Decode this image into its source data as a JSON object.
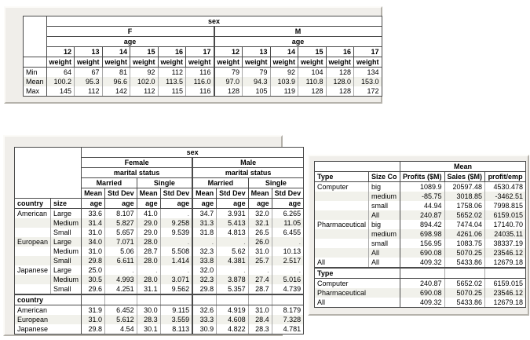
{
  "weight_table": {
    "sex_label": "sex",
    "measure_label": "weight",
    "groups": [
      {
        "label": "F",
        "age_label": "age",
        "ages": [
          "12",
          "13",
          "14",
          "15",
          "16",
          "17"
        ]
      },
      {
        "label": "M",
        "age_label": "age",
        "ages": [
          "12",
          "13",
          "14",
          "15",
          "16",
          "17"
        ]
      }
    ],
    "rows": [
      {
        "label": "Min",
        "values": [
          "64",
          "67",
          "81",
          "92",
          "112",
          "116",
          "79",
          "79",
          "92",
          "104",
          "128",
          "134"
        ]
      },
      {
        "label": "Mean",
        "values": [
          "100.2",
          "95.3",
          "96.6",
          "102.0",
          "113.5",
          "116.0",
          "97.0",
          "94.3",
          "103.9",
          "110.8",
          "128.0",
          "153.0"
        ]
      },
      {
        "label": "Max",
        "values": [
          "145",
          "112",
          "142",
          "112",
          "115",
          "116",
          "128",
          "105",
          "119",
          "128",
          "128",
          "172"
        ]
      }
    ]
  },
  "age_table": {
    "sex_label": "sex",
    "mean_label": "Mean",
    "stddev_label": "Std Dev",
    "age_label": "age",
    "country_label": "country",
    "size_label": "size",
    "groups": [
      {
        "label": "Female",
        "marital_label": "marital status",
        "statuses": [
          {
            "label": "Married"
          },
          {
            "label": "Single"
          }
        ]
      },
      {
        "label": "Male",
        "marital_label": "marital status",
        "statuses": [
          {
            "label": "Married"
          },
          {
            "label": "Single"
          }
        ]
      }
    ],
    "rows": [
      {
        "country": "American",
        "size": "Large",
        "values": [
          "33.6",
          "8.107",
          "41.0",
          ".",
          "34.7",
          "3.931",
          "32.0",
          "6.265"
        ]
      },
      {
        "country": "",
        "size": "Medium",
        "values": [
          "31.4",
          "5.827",
          "29.0",
          "9.258",
          "31.3",
          "5.413",
          "32.1",
          "11.05"
        ]
      },
      {
        "country": "",
        "size": "Small",
        "values": [
          "31.0",
          "5.657",
          "29.0",
          "9.539",
          "31.8",
          "4.813",
          "26.5",
          "6.455"
        ]
      },
      {
        "country": "European",
        "size": "Large",
        "values": [
          "34.0",
          "7.071",
          "28.0",
          ".",
          ".",
          ".",
          "26.0",
          "."
        ]
      },
      {
        "country": "",
        "size": "Medium",
        "values": [
          "31.0",
          "5.06",
          "28.7",
          "5.508",
          "32.3",
          "5.62",
          "31.0",
          "10.13"
        ]
      },
      {
        "country": "",
        "size": "Small",
        "values": [
          "29.8",
          "6.611",
          "28.0",
          "1.414",
          "33.8",
          "4.381",
          "25.7",
          "2.517"
        ]
      },
      {
        "country": "Japanese",
        "size": "Large",
        "values": [
          "25.0",
          ".",
          ".",
          ".",
          "32.0",
          ".",
          ".",
          "."
        ]
      },
      {
        "country": "",
        "size": "Medium",
        "values": [
          "30.5",
          "4.993",
          "28.0",
          "3.071",
          "32.3",
          "3.878",
          "27.4",
          "5.016"
        ]
      },
      {
        "country": "",
        "size": "Small",
        "values": [
          "29.6",
          "4.251",
          "31.1",
          "9.562",
          "29.8",
          "5.357",
          "28.7",
          "4.739"
        ]
      }
    ],
    "section_label": "country",
    "summary_rows": [
      {
        "label": "American",
        "values": [
          "31.9",
          "6.452",
          "30.0",
          "9.115",
          "32.6",
          "4.919",
          "31.0",
          "8.179"
        ]
      },
      {
        "label": "European",
        "values": [
          "31.0",
          "5.612",
          "28.3",
          "3.559",
          "33.3",
          "4.608",
          "28.4",
          "7.328"
        ]
      },
      {
        "label": "Japanese",
        "values": [
          "29.8",
          "4.54",
          "30.1",
          "8.113",
          "30.9",
          "4.822",
          "28.3",
          "4.781"
        ]
      }
    ]
  },
  "company_table": {
    "mean_label": "Mean",
    "type_label": "Type",
    "size_label": "Size Co",
    "columns": [
      "Profits ($M)",
      "Sales ($M)",
      "profit/emp"
    ],
    "rows": [
      {
        "type": "Computer",
        "size": "big",
        "values": [
          "1089.9",
          "20597.48",
          "4530.478"
        ]
      },
      {
        "type": "",
        "size": "medium",
        "values": [
          "-85.75",
          "3018.85",
          "-3462.51"
        ]
      },
      {
        "type": "",
        "size": "small",
        "values": [
          "44.94",
          "1758.06",
          "7998.815"
        ]
      },
      {
        "type": "",
        "size": "All",
        "values": [
          "240.87",
          "5652.02",
          "6159.015"
        ]
      },
      {
        "type": "Pharmaceutical",
        "size": "big",
        "values": [
          "894.42",
          "7474.04",
          "17140.70"
        ]
      },
      {
        "type": "",
        "size": "medium",
        "values": [
          "698.98",
          "4261.06",
          "24035.11"
        ]
      },
      {
        "type": "",
        "size": "small",
        "values": [
          "156.95",
          "1083.75",
          "38337.19"
        ]
      },
      {
        "type": "",
        "size": "All",
        "values": [
          "690.08",
          "5070.25",
          "23546.12"
        ]
      },
      {
        "type": "All",
        "size": "All",
        "values": [
          "409.32",
          "5433.86",
          "12679.18"
        ]
      }
    ],
    "section_label": "Type",
    "summary_rows": [
      {
        "label": "Computer",
        "values": [
          "240.87",
          "5652.02",
          "6159.015"
        ]
      },
      {
        "label": "Pharmaceutical",
        "values": [
          "690.08",
          "5070.25",
          "23546.12"
        ]
      },
      {
        "label": "All",
        "values": [
          "409.32",
          "5433.86",
          "12679.18"
        ]
      }
    ]
  }
}
